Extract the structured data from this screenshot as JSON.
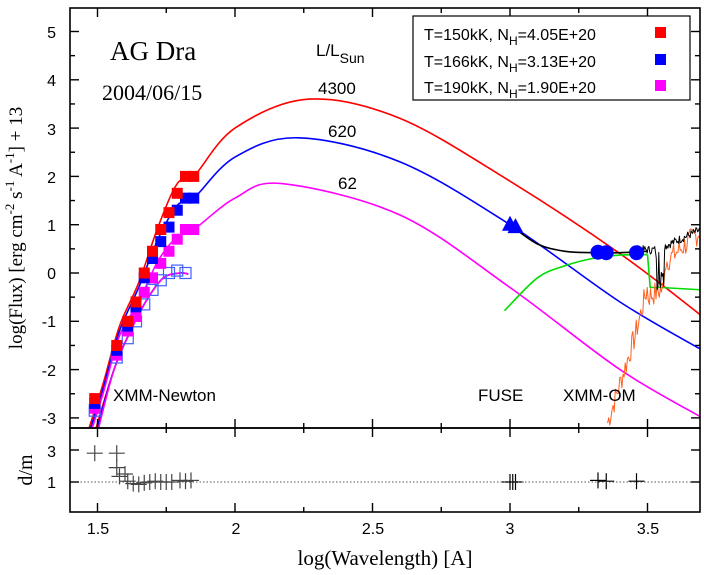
{
  "chart_data": {
    "type": "line",
    "title": "AG Dra",
    "subtitle": "2004/06/15",
    "xlabel": "log(Wavelength) [A]",
    "ylabel": "log(Flux) [erg cm^-2 s^-1 A^-1] + 13",
    "ylabel_parts": {
      "pre": "log(Flux) [erg cm",
      "sup1": "-2",
      "mid1": " s",
      "sup2": "-1",
      "mid2": " A",
      "sup3": "-1",
      "post": "] + 13"
    },
    "xlim": [
      1.4,
      3.7
    ],
    "ylim": [
      -3.1,
      5.5
    ],
    "x_ticks": [
      "1.5",
      "2",
      "2.5",
      "3",
      "3.5"
    ],
    "y_ticks": [
      "5",
      "4",
      "3",
      "2",
      "1",
      "0",
      "-1",
      "-2",
      "-3"
    ],
    "luminosity_header": "L/L",
    "luminosity_header_sub": "Sun",
    "annotations": [
      "XMM-Newton",
      "FUSE",
      "XMM-OM"
    ],
    "legend": {
      "position": "top-right",
      "entries": [
        {
          "label_pre": "T=150kK, N",
          "label_sub": "H",
          "label_post": "=4.05E+20",
          "color": "#ff0000"
        },
        {
          "label_pre": "T=166kK, N",
          "label_sub": "H",
          "label_post": "=3.13E+20",
          "color": "#0000ff"
        },
        {
          "label_pre": "T=190kK, N",
          "label_sub": "H",
          "label_post": "=1.90E+20",
          "color": "#ff00ff"
        }
      ]
    },
    "series": [
      {
        "name": "T=150kK, NH=4.05E+20",
        "color": "#ff0000",
        "luminosity": "4300",
        "peak": {
          "x": 2.27,
          "y": 3.6
        },
        "x": [
          1.49,
          1.57,
          1.61,
          1.64,
          1.67,
          1.7,
          1.73,
          1.76,
          1.79,
          1.82,
          1.85,
          2.0,
          2.27,
          2.6,
          3.0,
          3.4,
          3.7
        ],
        "values": [
          -2.6,
          -1.5,
          -1.0,
          -0.6,
          0.0,
          0.45,
          0.9,
          1.25,
          1.65,
          2.0,
          2.0,
          3.0,
          3.6,
          3.2,
          1.9,
          0.4,
          -0.9
        ]
      },
      {
        "name": "T=166kK, NH=3.13E+20",
        "color": "#0000ff",
        "luminosity": "620",
        "peak": {
          "x": 2.23,
          "y": 2.8
        },
        "x": [
          1.49,
          1.57,
          1.61,
          1.64,
          1.67,
          1.7,
          1.73,
          1.76,
          1.79,
          1.82,
          1.85,
          2.0,
          2.23,
          2.6,
          3.0,
          3.4,
          3.7
        ],
        "values": [
          -2.7,
          -1.6,
          -1.1,
          -0.7,
          -0.1,
          0.3,
          0.65,
          0.95,
          1.3,
          1.55,
          1.55,
          2.4,
          2.8,
          2.3,
          1.0,
          -0.6,
          -1.6
        ]
      },
      {
        "name": "T=190kK, NH=1.90E+20",
        "color": "#ff00ff",
        "luminosity": "62",
        "peak": {
          "x": 2.17,
          "y": 1.85
        },
        "x": [
          1.49,
          1.57,
          1.61,
          1.64,
          1.67,
          1.7,
          1.73,
          1.76,
          1.79,
          1.82,
          1.85,
          2.0,
          2.17,
          2.6,
          3.0,
          3.4,
          3.7
        ],
        "values": [
          -2.8,
          -1.7,
          -1.2,
          -0.9,
          -0.4,
          -0.1,
          0.2,
          0.45,
          0.7,
          0.9,
          0.9,
          1.55,
          1.85,
          1.2,
          -0.3,
          -2.0,
          -3.0
        ]
      },
      {
        "name": "XMM-Newton absorbed data (open squares)",
        "color": "#4040ff",
        "x": [
          1.49,
          1.57,
          1.61,
          1.64,
          1.67,
          1.7,
          1.73,
          1.76,
          1.79,
          1.82
        ],
        "values": [
          -2.85,
          -1.75,
          -1.35,
          -1.0,
          -0.65,
          -0.35,
          -0.15,
          0.0,
          0.05,
          0.0
        ]
      },
      {
        "name": "FUSE (triangles)",
        "color": "#0000ff",
        "x": [
          3.0,
          3.02
        ],
        "values": [
          1.0,
          0.95
        ]
      },
      {
        "name": "XMM-OM (circles)",
        "color": "#0000ff",
        "x": [
          3.32,
          3.35,
          3.46
        ],
        "values": [
          0.43,
          0.42,
          0.42
        ]
      },
      {
        "name": "Total model (black)",
        "color": "#000000",
        "x": [
          3.0,
          3.1,
          3.2,
          3.3,
          3.4,
          3.5,
          3.55,
          3.6,
          3.7
        ],
        "values": [
          1.0,
          0.6,
          0.45,
          0.42,
          0.42,
          0.45,
          0.2,
          0.7,
          0.9
        ]
      },
      {
        "name": "Nebular component (green)",
        "color": "#00dd00",
        "x": [
          2.98,
          3.1,
          3.2,
          3.3,
          3.4,
          3.5,
          3.51,
          3.6,
          3.7
        ],
        "values": [
          -0.78,
          -0.1,
          0.15,
          0.3,
          0.37,
          0.38,
          -0.15,
          -0.3,
          -0.35
        ]
      },
      {
        "name": "Giant spectrum (orange)",
        "color": "#ff6020",
        "x": [
          3.36,
          3.4,
          3.44,
          3.48,
          3.5,
          3.52,
          3.56,
          3.6,
          3.65,
          3.7
        ],
        "values": [
          -3.0,
          -2.2,
          -1.5,
          -0.7,
          -0.3,
          -0.5,
          -0.2,
          0.6,
          0.8,
          0.9
        ]
      }
    ],
    "residual_panel": {
      "ylabel": "d/m",
      "y_ticks": [
        "3",
        "1"
      ],
      "reference_line": 1,
      "x": [
        1.49,
        1.57,
        1.57,
        1.58,
        1.6,
        1.61,
        1.63,
        1.65,
        1.67,
        1.69,
        1.71,
        1.73,
        1.75,
        1.77,
        1.8,
        1.82,
        1.84,
        3.0,
        3.01,
        3.02,
        3.32,
        3.35,
        3.46
      ],
      "values": [
        2.8,
        2.8,
        1.9,
        1.35,
        1.5,
        1.05,
        0.9,
        0.85,
        0.95,
        1.0,
        1.05,
        1.0,
        1.0,
        1.0,
        1.1,
        1.05,
        1.1,
        1.0,
        1.0,
        1.0,
        1.1,
        1.05,
        1.05
      ]
    }
  }
}
